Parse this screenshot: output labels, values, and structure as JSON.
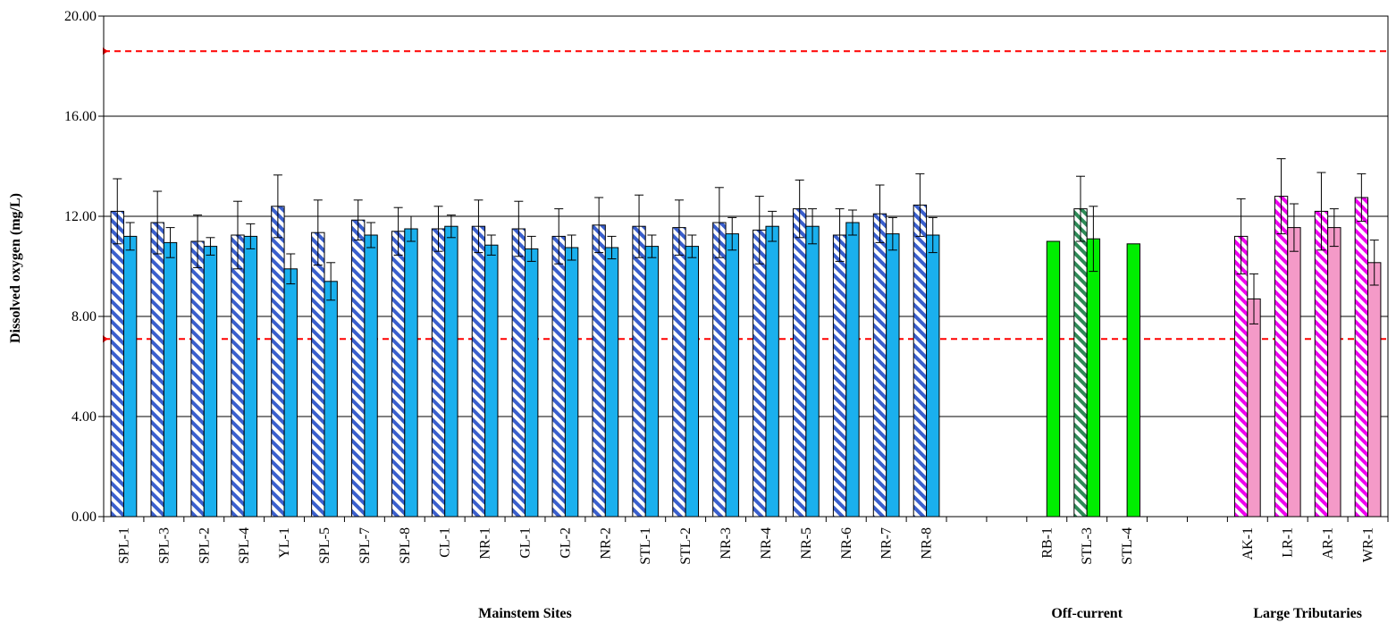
{
  "chart_data": {
    "type": "bar",
    "ylabel": "Dissolved oxygen (mg/L)",
    "ylim": [
      0,
      20
    ],
    "yticks": [
      "0.00",
      "4.00",
      "8.00",
      "12.00",
      "16.00",
      "20.00"
    ],
    "grid": true,
    "reference_lines": [
      18.6,
      7.1
    ],
    "groups": [
      {
        "label": "Mainstem Sites",
        "colors": {
          "hatched": "#3a5fcd",
          "solid": "#1ab0ee"
        },
        "sites": [
          {
            "name": "SPL-1",
            "values": [
              12.2,
              11.2
            ],
            "errors": [
              1.3,
              0.55
            ]
          },
          {
            "name": "SPL-3",
            "values": [
              11.75,
              10.95
            ],
            "errors": [
              1.25,
              0.6
            ]
          },
          {
            "name": "SPL-2",
            "values": [
              11.0,
              10.8
            ],
            "errors": [
              1.05,
              0.35
            ]
          },
          {
            "name": "SPL-4",
            "values": [
              11.25,
              11.2
            ],
            "errors": [
              1.35,
              0.5
            ]
          },
          {
            "name": "YL-1",
            "values": [
              12.4,
              9.9
            ],
            "errors": [
              1.25,
              0.6
            ]
          },
          {
            "name": "SPL-5",
            "values": [
              11.35,
              9.4
            ],
            "errors": [
              1.3,
              0.75
            ]
          },
          {
            "name": "SPL-7",
            "values": [
              11.85,
              11.25
            ],
            "errors": [
              0.8,
              0.5
            ]
          },
          {
            "name": "SPL-8",
            "values": [
              11.4,
              11.5
            ],
            "errors": [
              0.95,
              0.5
            ]
          },
          {
            "name": "CL-1",
            "values": [
              11.5,
              11.6
            ],
            "errors": [
              0.9,
              0.45
            ]
          },
          {
            "name": "NR-1",
            "values": [
              11.6,
              10.85
            ],
            "errors": [
              1.05,
              0.4
            ]
          },
          {
            "name": "GL-1",
            "values": [
              11.5,
              10.7
            ],
            "errors": [
              1.1,
              0.5
            ]
          },
          {
            "name": "GL-2",
            "values": [
              11.2,
              10.75
            ],
            "errors": [
              1.1,
              0.5
            ]
          },
          {
            "name": "NR-2",
            "values": [
              11.65,
              10.75
            ],
            "errors": [
              1.1,
              0.45
            ]
          },
          {
            "name": "STL-1",
            "values": [
              11.6,
              10.8
            ],
            "errors": [
              1.25,
              0.45
            ]
          },
          {
            "name": "STL-2",
            "values": [
              11.55,
              10.8
            ],
            "errors": [
              1.1,
              0.45
            ]
          },
          {
            "name": "NR-3",
            "values": [
              11.75,
              11.3
            ],
            "errors": [
              1.4,
              0.65
            ]
          },
          {
            "name": "NR-4",
            "values": [
              11.45,
              11.6
            ],
            "errors": [
              1.35,
              0.6
            ]
          },
          {
            "name": "NR-5",
            "values": [
              12.3,
              11.6
            ],
            "errors": [
              1.15,
              0.7
            ]
          },
          {
            "name": "NR-6",
            "values": [
              11.25,
              11.75
            ],
            "errors": [
              1.05,
              0.5
            ]
          },
          {
            "name": "NR-7",
            "values": [
              12.1,
              11.3
            ],
            "errors": [
              1.15,
              0.65
            ]
          },
          {
            "name": "NR-8",
            "values": [
              12.45,
              11.25
            ],
            "errors": [
              1.25,
              0.7
            ]
          }
        ]
      },
      {
        "label": "Off-current",
        "colors": {
          "hatched": "#2e8b57",
          "solid": "#00ee00"
        },
        "sites": [
          {
            "name": "RB-1",
            "values": [
              null,
              11.0
            ],
            "errors": [
              null,
              null
            ]
          },
          {
            "name": "STL-3",
            "values": [
              12.3,
              11.1
            ],
            "errors": [
              1.3,
              1.3
            ]
          },
          {
            "name": "STL-4",
            "values": [
              null,
              10.9
            ],
            "errors": [
              null,
              null
            ]
          }
        ]
      },
      {
        "label": "Large Tributaries",
        "colors": {
          "hatched": "#ee00ee",
          "solid": "#f49ac8"
        },
        "sites": [
          {
            "name": "AK-1",
            "values": [
              11.2,
              8.7
            ],
            "errors": [
              1.5,
              1.0
            ]
          },
          {
            "name": "LR-1",
            "values": [
              12.8,
              11.55
            ],
            "errors": [
              1.5,
              0.95
            ]
          },
          {
            "name": "AR-1",
            "values": [
              12.2,
              11.55
            ],
            "errors": [
              1.55,
              0.75
            ]
          },
          {
            "name": "WR-1",
            "values": [
              12.75,
              10.15
            ],
            "errors": [
              0.95,
              0.9
            ]
          }
        ]
      }
    ]
  }
}
